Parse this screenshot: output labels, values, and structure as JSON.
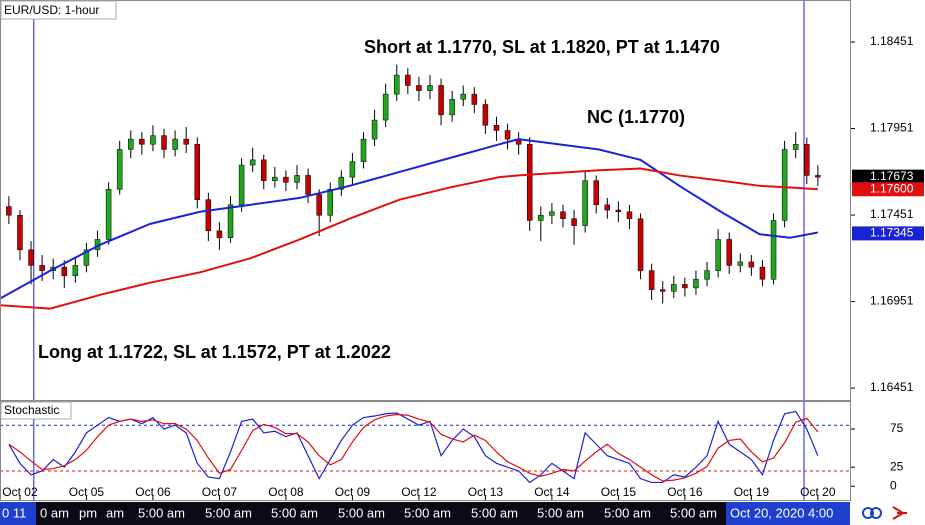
{
  "chart_data": [
    {
      "type": "candlestick",
      "title": "EUR/USD: 1-hour",
      "x": [
        -4,
        0,
        4,
        8,
        12,
        16,
        20,
        24,
        28,
        32,
        36,
        40,
        44,
        48,
        52,
        56,
        60,
        64,
        68,
        72,
        76,
        80,
        84,
        88,
        92,
        96,
        100,
        104,
        108,
        112,
        116,
        120,
        124,
        128,
        132,
        136,
        140,
        144,
        148,
        152,
        156,
        160,
        164,
        168,
        172,
        176,
        180,
        184,
        188,
        192,
        196,
        200,
        204,
        208,
        212,
        216,
        220,
        224,
        228,
        232,
        236,
        240,
        244,
        248,
        252,
        256,
        260,
        264,
        268,
        272,
        276,
        280,
        284,
        288
      ],
      "open": [
        1.175,
        1.1745,
        1.1725,
        1.1716,
        1.1713,
        1.1715,
        1.171,
        1.1716,
        1.1725,
        1.1731,
        1.176,
        1.1783,
        1.1789,
        1.1786,
        1.1791,
        1.1783,
        1.1789,
        1.1786,
        1.1754,
        1.1736,
        1.1732,
        1.1751,
        1.1774,
        1.1777,
        1.1765,
        1.1767,
        1.1764,
        1.1768,
        1.1757,
        1.1745,
        1.176,
        1.1767,
        1.1776,
        1.1789,
        1.18,
        1.1815,
        1.1826,
        1.182,
        1.1817,
        1.182,
        1.1803,
        1.1812,
        1.1815,
        1.1809,
        1.1797,
        1.1794,
        1.1789,
        1.1786,
        1.1742,
        1.1745,
        1.1747,
        1.1743,
        1.1739,
        1.1765,
        1.1751,
        1.1748,
        1.1747,
        1.1743,
        1.1713,
        1.1702,
        1.1701,
        1.1705,
        1.1703,
        1.1708,
        1.1713,
        1.1731,
        1.1716,
        1.1718,
        1.1715,
        1.1708,
        1.1742,
        1.1783,
        1.1786,
        1.1768
      ],
      "high": [
        1.1756,
        1.1748,
        1.173,
        1.1722,
        1.172,
        1.1719,
        1.1721,
        1.1729,
        1.1736,
        1.1764,
        1.1788,
        1.1794,
        1.1793,
        1.1797,
        1.1795,
        1.1794,
        1.1796,
        1.179,
        1.1758,
        1.1741,
        1.1756,
        1.1778,
        1.1784,
        1.178,
        1.1773,
        1.1771,
        1.1774,
        1.1772,
        1.176,
        1.1764,
        1.1771,
        1.1781,
        1.1793,
        1.1806,
        1.1821,
        1.1832,
        1.183,
        1.1825,
        1.1826,
        1.1824,
        1.1817,
        1.182,
        1.1819,
        1.1812,
        1.1802,
        1.1798,
        1.1793,
        1.179,
        1.175,
        1.1752,
        1.1751,
        1.1748,
        1.177,
        1.1768,
        1.1755,
        1.1753,
        1.1751,
        1.1746,
        1.1717,
        1.1707,
        1.171,
        1.1709,
        1.1713,
        1.1718,
        1.1737,
        1.1735,
        1.1723,
        1.1722,
        1.1719,
        1.1746,
        1.1788,
        1.1793,
        1.179,
        1.1774
      ],
      "low": [
        1.174,
        1.1719,
        1.1705,
        1.1707,
        1.1708,
        1.1703,
        1.1706,
        1.1712,
        1.1721,
        1.1728,
        1.1757,
        1.1778,
        1.178,
        1.1782,
        1.1778,
        1.1779,
        1.1781,
        1.1749,
        1.173,
        1.1725,
        1.1729,
        1.1747,
        1.177,
        1.176,
        1.1761,
        1.1759,
        1.176,
        1.1752,
        1.1733,
        1.1741,
        1.1756,
        1.1763,
        1.1772,
        1.1785,
        1.1796,
        1.1811,
        1.1815,
        1.1811,
        1.1812,
        1.1797,
        1.1799,
        1.1808,
        1.1804,
        1.1792,
        1.1788,
        1.1783,
        1.178,
        1.1736,
        1.173,
        1.174,
        1.1738,
        1.1728,
        1.1735,
        1.1746,
        1.1743,
        1.1741,
        1.1737,
        1.1708,
        1.1696,
        1.1694,
        1.1697,
        1.1698,
        1.1699,
        1.1704,
        1.1709,
        1.1711,
        1.1712,
        1.171,
        1.1704,
        1.1705,
        1.1738,
        1.1778,
        1.1763,
        1.1762
      ],
      "close": [
        1.1745,
        1.1725,
        1.1716,
        1.1713,
        1.1715,
        1.171,
        1.1716,
        1.1725,
        1.1731,
        1.176,
        1.1783,
        1.1789,
        1.1786,
        1.1791,
        1.1783,
        1.1789,
        1.1786,
        1.1754,
        1.1736,
        1.1732,
        1.1751,
        1.1774,
        1.1777,
        1.1765,
        1.1767,
        1.1764,
        1.1768,
        1.1757,
        1.1745,
        1.176,
        1.1767,
        1.1776,
        1.1789,
        1.18,
        1.1815,
        1.1826,
        1.182,
        1.1817,
        1.182,
        1.1803,
        1.1812,
        1.1815,
        1.1809,
        1.1797,
        1.1794,
        1.1789,
        1.1786,
        1.1742,
        1.1745,
        1.1747,
        1.1743,
        1.1739,
        1.1765,
        1.1751,
        1.1748,
        1.1747,
        1.1743,
        1.1713,
        1.1702,
        1.1701,
        1.1705,
        1.1703,
        1.1708,
        1.1713,
        1.1731,
        1.1716,
        1.1718,
        1.1715,
        1.1708,
        1.1742,
        1.1783,
        1.1786,
        1.1768,
        1.1767
      ],
      "up_color": "#1fa51f",
      "down_color": "#c40000",
      "overlay_x": [
        -7,
        11,
        29,
        47,
        65,
        83,
        101,
        119,
        137,
        155,
        173,
        180,
        209,
        224,
        238,
        253,
        267,
        278,
        288
      ],
      "overlays": [
        {
          "color": "#1a22d6",
          "values": [
            1.1697,
            1.1713,
            1.1728,
            1.174,
            1.1747,
            1.1751,
            1.1755,
            1.1762,
            1.177,
            1.1778,
            1.1786,
            1.1789,
            1.1783,
            1.1777,
            1.1762,
            1.1747,
            1.1734,
            1.1732,
            1.1735
          ]
        },
        {
          "color": "#e01010",
          "values": [
            1.1693,
            1.1691,
            1.1699,
            1.1706,
            1.1712,
            1.172,
            1.1731,
            1.1743,
            1.1754,
            1.1761,
            1.1767,
            1.1768,
            1.1771,
            1.1772,
            1.1768,
            1.1765,
            1.1762,
            1.1761,
            1.176
          ]
        }
      ],
      "xlim": [
        -7.2,
        299.6
      ],
      "ylim": [
        1.16382,
        1.18694
      ],
      "yticks": [
        1.18451,
        1.17951,
        1.17451,
        1.16951,
        1.16451
      ],
      "price_labels": [
        {
          "value": 1.17673,
          "color": "#000000"
        },
        {
          "value": 1.176,
          "label": "1.17600",
          "color": "#e01010"
        },
        {
          "value": 1.17345,
          "color": "#1a22d6"
        }
      ],
      "vlines": [
        5,
        283
      ],
      "annotations": [
        "Short at 1.1770, SL at 1.1820, PT at 1.1470",
        "NC (1.1770)",
        "Long at 1.1722, SL at 1.1572, PT at 1.2022"
      ]
    },
    {
      "type": "stochastic",
      "title": "Stochastic",
      "x": [
        -4,
        0,
        4,
        8,
        12,
        16,
        20,
        24,
        28,
        32,
        36,
        40,
        44,
        48,
        52,
        56,
        60,
        64,
        68,
        72,
        76,
        80,
        84,
        88,
        92,
        96,
        100,
        104,
        108,
        112,
        116,
        120,
        124,
        128,
        132,
        136,
        140,
        144,
        148,
        152,
        156,
        160,
        164,
        168,
        172,
        176,
        180,
        184,
        188,
        192,
        196,
        200,
        204,
        208,
        212,
        216,
        220,
        224,
        228,
        232,
        236,
        240,
        244,
        248,
        252,
        256,
        260,
        264,
        268,
        272,
        276,
        280,
        284,
        288
      ],
      "series": [
        {
          "color": "#1a22d6",
          "values": [
            55,
            30,
            15,
            20,
            35,
            25,
            45,
            70,
            80,
            90,
            85,
            88,
            82,
            90,
            75,
            80,
            70,
            30,
            12,
            10,
            45,
            85,
            88,
            70,
            72,
            65,
            70,
            40,
            10,
            35,
            60,
            80,
            90,
            92,
            95,
            96,
            88,
            80,
            85,
            40,
            60,
            75,
            65,
            40,
            30,
            25,
            20,
            5,
            15,
            30,
            20,
            10,
            70,
            55,
            40,
            35,
            30,
            10,
            5,
            5,
            15,
            12,
            25,
            40,
            85,
            55,
            45,
            35,
            15,
            60,
            95,
            98,
            75,
            40
          ]
        },
        {
          "color": "#e01010",
          "values": [
            55,
            45,
            33,
            22,
            23,
            27,
            35,
            47,
            65,
            80,
            85,
            88,
            85,
            87,
            82,
            82,
            75,
            60,
            37,
            17,
            22,
            47,
            73,
            81,
            77,
            69,
            69,
            58,
            40,
            28,
            35,
            58,
            77,
            87,
            92,
            94,
            93,
            88,
            84,
            68,
            62,
            58,
            67,
            60,
            45,
            32,
            25,
            17,
            13,
            17,
            22,
            20,
            33,
            45,
            55,
            43,
            35,
            25,
            15,
            7,
            8,
            11,
            17,
            26,
            50,
            60,
            62,
            45,
            32,
            37,
            57,
            84,
            89,
            71
          ]
        }
      ],
      "levels": [
        {
          "value": 80,
          "color": "#1a22d6"
        },
        {
          "value": 20,
          "color": "#e01010"
        }
      ],
      "xlim": [
        -7.2,
        299.6
      ],
      "ylim": [
        -18,
        113
      ],
      "yticks": [
        75,
        25,
        0
      ],
      "xticks": [
        {
          "value": 0,
          "label": "Oct 02"
        },
        {
          "value": 24,
          "label": "Oct 05"
        },
        {
          "value": 48,
          "label": "Oct 06"
        },
        {
          "value": 72,
          "label": "Oct 07"
        },
        {
          "value": 96,
          "label": "Oct 08"
        },
        {
          "value": 120,
          "label": "Oct 09"
        },
        {
          "value": 144,
          "label": "Oct 12"
        },
        {
          "value": 168,
          "label": "Oct 13"
        },
        {
          "value": 192,
          "label": "Oct 14"
        },
        {
          "value": 216,
          "label": "Oct 15"
        },
        {
          "value": 240,
          "label": "Oct 16"
        },
        {
          "value": 264,
          "label": "Oct 19"
        },
        {
          "value": 288,
          "label": "Oct 20"
        }
      ]
    }
  ],
  "time_bar": {
    "labels": [
      "0 11",
      "0 am",
      "pm",
      "am",
      "5:00 am",
      "5:00 am",
      "5:00 am",
      "5:00 am",
      "5:00 am",
      "5:00 am",
      "5:00 am",
      "5:00 am",
      "5:00 am"
    ],
    "current": "Oct 20, 2020 4:00"
  }
}
